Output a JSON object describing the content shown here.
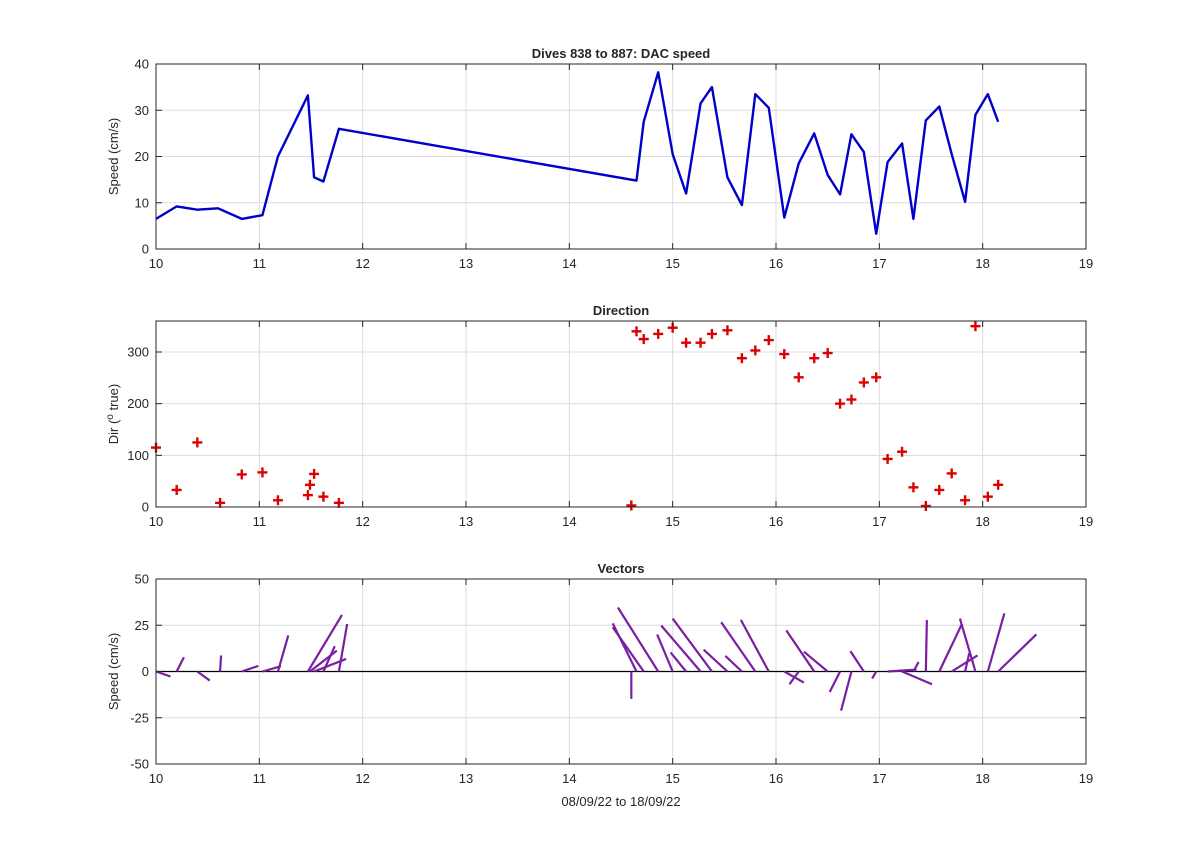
{
  "chart_data": [
    {
      "type": "line",
      "title": "Dives 838 to 887: DAC speed",
      "xlabel": "",
      "ylabel": "Speed (cm/s)",
      "xlim": [
        10,
        19
      ],
      "ylim": [
        0,
        40
      ],
      "xticks": [
        10,
        11,
        12,
        13,
        14,
        15,
        16,
        17,
        18,
        19
      ],
      "yticks": [
        0,
        10,
        20,
        30,
        40
      ],
      "grid": true,
      "series": [
        {
          "color": "#0000cc",
          "x": [
            10.0,
            10.2,
            10.4,
            10.6,
            10.83,
            11.03,
            11.18,
            11.47,
            11.53,
            11.62,
            11.77,
            14.65,
            14.72,
            14.86,
            15.0,
            15.13,
            15.27,
            15.38,
            15.53,
            15.67,
            15.8,
            15.93,
            16.08,
            16.22,
            16.37,
            16.5,
            16.62,
            16.73,
            16.85,
            16.97,
            17.08,
            17.22,
            17.33,
            17.45,
            17.58,
            17.7,
            17.83,
            17.93,
            18.05,
            18.15
          ],
          "y": [
            6.5,
            9.2,
            8.5,
            8.8,
            6.5,
            7.3,
            20,
            33.2,
            15.5,
            14.6,
            26,
            14.8,
            27.5,
            38.2,
            20.5,
            12,
            31.5,
            35,
            15.5,
            9.5,
            33.5,
            30.5,
            6.8,
            18.5,
            25,
            16,
            11.8,
            24.8,
            21,
            3.3,
            18.8,
            22.8,
            6.5,
            27.8,
            30.8,
            20.5,
            10.2,
            29,
            33.5,
            27.5
          ]
        }
      ]
    },
    {
      "type": "scatter",
      "title": "Direction",
      "xlabel": "",
      "ylabel": "Dir (",
      "ylabel_sup": "o",
      "ylabel_tail": " true)",
      "xlim": [
        10,
        19
      ],
      "ylim": [
        0,
        360
      ],
      "xticks": [
        10,
        11,
        12,
        13,
        14,
        15,
        16,
        17,
        18,
        19
      ],
      "yticks": [
        0,
        100,
        200,
        300
      ],
      "grid": true,
      "marker": "+",
      "series": [
        {
          "color": "#dd0000",
          "x": [
            10.0,
            10.2,
            10.4,
            10.62,
            10.83,
            11.03,
            11.18,
            11.47,
            11.49,
            11.53,
            11.62,
            11.77,
            14.6,
            14.65,
            14.72,
            14.86,
            15.0,
            15.13,
            15.27,
            15.38,
            15.53,
            15.67,
            15.8,
            15.93,
            16.08,
            16.22,
            16.37,
            16.5,
            16.62,
            16.73,
            16.85,
            16.97,
            17.08,
            17.22,
            17.33,
            17.45,
            17.58,
            17.7,
            17.83,
            17.93,
            18.05,
            18.15
          ],
          "y": [
            115,
            33,
            125,
            8,
            63,
            67,
            13,
            23,
            43,
            64,
            20,
            8,
            3,
            340,
            325,
            335,
            347,
            318,
            318,
            335,
            342,
            288,
            303,
            323,
            296,
            251,
            288,
            298,
            200,
            208,
            241,
            251,
            93,
            107,
            38,
            2,
            33,
            65,
            13,
            350,
            20,
            43
          ]
        }
      ]
    },
    {
      "type": "quiver",
      "title": "Vectors",
      "xlabel": "08/09/22 to 18/09/22",
      "ylabel": "Speed (cm/s)",
      "xlim": [
        10,
        19
      ],
      "ylim": [
        -50,
        50
      ],
      "xticks": [
        10,
        11,
        12,
        13,
        14,
        15,
        16,
        17,
        18,
        19
      ],
      "yticks": [
        -50,
        -25,
        0,
        25,
        50
      ],
      "grid": true,
      "series": [
        {
          "color": "#7a1fa2",
          "x": [
            10.0,
            10.2,
            10.4,
            10.62,
            10.83,
            11.03,
            11.18,
            11.47,
            11.49,
            11.53,
            11.62,
            11.77,
            14.6,
            14.65,
            14.72,
            14.86,
            15.0,
            15.13,
            15.27,
            15.38,
            15.53,
            15.67,
            15.8,
            15.93,
            16.08,
            16.22,
            16.37,
            16.5,
            16.62,
            16.73,
            16.85,
            16.97,
            17.08,
            17.22,
            17.33,
            17.45,
            17.58,
            17.7,
            17.83,
            17.93,
            18.05,
            18.15
          ],
          "u": [
            0.14,
            0.07,
            0.12,
            0.01,
            0.16,
            0.18,
            0.1,
            0.33,
            0.26,
            0.31,
            0.11,
            0.08,
            0.0,
            -0.23,
            -0.3,
            -0.39,
            -0.15,
            -0.15,
            -0.38,
            -0.38,
            -0.23,
            -0.16,
            -0.33,
            -0.27,
            0.19,
            -0.09,
            -0.27,
            -0.23,
            -0.1,
            -0.1,
            -0.13,
            -0.04,
            0.28,
            0.29,
            0.05,
            0.01,
            0.22,
            0.25,
            0.04,
            -0.15,
            0.16,
            0.37
          ],
          "v": [
            -2.7,
            7.7,
            -4.9,
            8.7,
            3.0,
            2.9,
            19.5,
            30.6,
            11.3,
            6.8,
            13.7,
            25.7,
            -14.8,
            26.0,
            23.9,
            34.6,
            20.0,
            10.3,
            24.8,
            28.6,
            11.8,
            8.4,
            26.6,
            27.9,
            -6.0,
            -6.9,
            22.2,
            10.7,
            -11.1,
            -21.1,
            11.0,
            -3.8,
            1.0,
            -6.9,
            5.1,
            27.8,
            25.8,
            8.7,
            9.9,
            28.6,
            31.4,
            20.1
          ]
        }
      ]
    }
  ]
}
